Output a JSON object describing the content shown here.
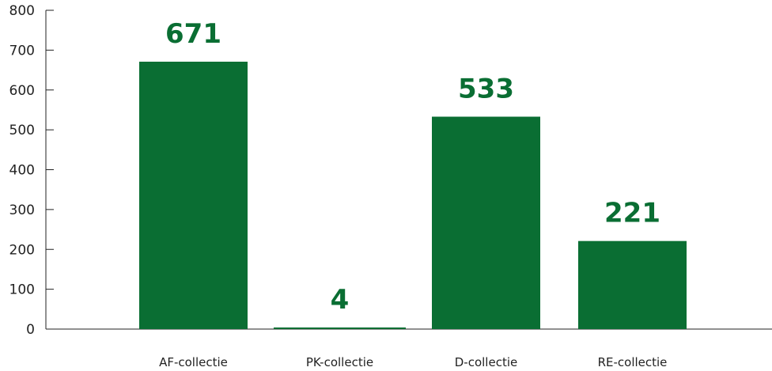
{
  "chart_data": {
    "type": "bar",
    "categories": [
      "AF-collectie",
      "PK-collectie",
      "D-collectie",
      "RE-collectie"
    ],
    "values": [
      671,
      4,
      533,
      221
    ],
    "data_labels": [
      "671",
      "4",
      "533",
      "221"
    ],
    "yticks": [
      "0",
      "100",
      "200",
      "300",
      "400",
      "500",
      "600",
      "700",
      "800"
    ],
    "ylim": [
      0,
      800
    ],
    "grid": false,
    "legend": "none",
    "bar_color": "#0a6e33",
    "label_color": "#0a6e33"
  }
}
